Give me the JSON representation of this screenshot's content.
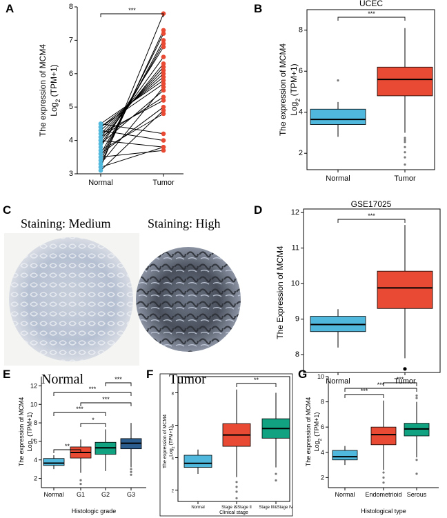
{
  "colors": {
    "normal": "#4fb8dc",
    "tumor": "#e84a33",
    "teal": "#11a381",
    "line": "#000000"
  },
  "chart_data": [
    {
      "id": "A",
      "type": "scatter",
      "subtype": "paired",
      "ylabel": "The expression of MCM4",
      "ylabel2_main": "Log",
      "ylabel2_sub": "2",
      "ylabel2_rest": " (TPM+1)",
      "categories": [
        "Normal",
        "Tumor"
      ],
      "ylim": [
        3,
        8
      ],
      "yticks": [
        "3",
        "4",
        "5",
        "6",
        "7",
        "8"
      ],
      "significance": "***",
      "pairs": [
        [
          3.2,
          7.8
        ],
        [
          3.3,
          7.3
        ],
        [
          3.4,
          7.2
        ],
        [
          3.5,
          7.0
        ],
        [
          3.6,
          6.9
        ],
        [
          3.8,
          6.8
        ],
        [
          3.9,
          6.5
        ],
        [
          4.0,
          6.3
        ],
        [
          4.1,
          6.2
        ],
        [
          4.2,
          6.1
        ],
        [
          4.3,
          6.0
        ],
        [
          4.4,
          5.9
        ],
        [
          4.5,
          5.8
        ],
        [
          4.4,
          5.7
        ],
        [
          3.3,
          5.6
        ],
        [
          3.9,
          5.5
        ],
        [
          4.1,
          5.3
        ],
        [
          4.2,
          5.2
        ],
        [
          3.6,
          5.0
        ],
        [
          3.1,
          4.9
        ],
        [
          3.7,
          4.8
        ],
        [
          4.5,
          4.2
        ],
        [
          4.3,
          4.0
        ],
        [
          4.0,
          3.8
        ],
        [
          3.5,
          3.7
        ],
        [
          3.2,
          3.8
        ]
      ]
    },
    {
      "id": "B",
      "type": "box",
      "title": "UCEC",
      "ylabel": "The expression of MCM4",
      "ylabel2_main": "Log",
      "ylabel2_sub": "2",
      "ylabel2_rest": " (TPM+1)",
      "categories": [
        "Normal",
        "Tumor"
      ],
      "ylim": [
        1.2,
        9
      ],
      "yticks": [
        "2",
        "4",
        "6",
        "8"
      ],
      "significance": "***",
      "boxes": [
        {
          "min": 2.8,
          "q1": 3.4,
          "median": 3.65,
          "q3": 4.15,
          "max": 4.5,
          "outliers": [
            5.55
          ]
        },
        {
          "min": 3.0,
          "q1": 4.8,
          "median": 5.6,
          "q3": 6.2,
          "max": 8.1,
          "outliers": [
            2.75,
            2.65,
            2.55,
            2.3,
            2.05,
            1.8,
            1.45
          ]
        }
      ]
    },
    {
      "id": "D",
      "type": "box",
      "title": "GSE17025",
      "ylabel": "The Expression of MCM4",
      "categories": [
        "Normal",
        "Tumor"
      ],
      "ylim": [
        7.5,
        12.1
      ],
      "yticks": [
        "8",
        "9",
        "10",
        "11",
        "12"
      ],
      "significance": "***",
      "boxes": [
        {
          "min": 8.2,
          "q1": 8.65,
          "median": 8.85,
          "q3": 9.08,
          "max": 9.28,
          "outliers": []
        },
        {
          "min": 7.9,
          "q1": 9.3,
          "median": 9.88,
          "q3": 10.35,
          "max": 11.65,
          "outliers": [
            7.6
          ]
        }
      ]
    },
    {
      "id": "E",
      "type": "box",
      "ylabel": "The expression of MCM4",
      "ylabel2_main": "Log",
      "ylabel2_sub": "2",
      "ylabel2_rest": " (TPM+1)",
      "xlabel": "Histologic grade",
      "categories": [
        "Normal",
        "G1",
        "G2",
        "G3"
      ],
      "ylim": [
        1,
        13
      ],
      "yticks": [
        "2",
        "4",
        "6",
        "8",
        "10",
        "12"
      ],
      "significance": [
        {
          "from": 0,
          "to": 1,
          "label": "**"
        },
        {
          "from": 1,
          "to": 2,
          "label": "*"
        },
        {
          "from": 0,
          "to": 2,
          "label": "***"
        },
        {
          "from": 1,
          "to": 3,
          "label": "***"
        },
        {
          "from": 0,
          "to": 3,
          "label": "***"
        },
        {
          "from": 2,
          "to": 3,
          "label": "***"
        }
      ],
      "boxes": [
        {
          "min": 3.0,
          "q1": 3.4,
          "median": 3.65,
          "q3": 4.15,
          "max": 4.5,
          "outliers": []
        },
        {
          "min": 2.6,
          "q1": 4.2,
          "median": 4.8,
          "q3": 5.4,
          "max": 6.2,
          "outliers": [
            1.8,
            1.4
          ]
        },
        {
          "min": 2.8,
          "q1": 4.6,
          "median": 5.3,
          "q3": 5.9,
          "max": 7.3,
          "outliers": []
        },
        {
          "min": 3.2,
          "q1": 5.2,
          "median": 5.8,
          "q3": 6.3,
          "max": 8.0,
          "outliers": [
            3.0,
            2.7,
            2.4
          ]
        }
      ]
    },
    {
      "id": "F",
      "type": "box",
      "ylabel": "The expression of MCM4",
      "ylabel2_main": "Log",
      "ylabel2_sub": "2",
      "ylabel2_rest": " (TPM+1)",
      "xlabel": "Clinical stage",
      "categories": [
        "Normal",
        "Stage I&Stage II",
        "Stage III&Stage IV"
      ],
      "ylim": [
        1.3,
        9
      ],
      "yticks": [
        "2",
        "4",
        "6",
        "8"
      ],
      "significance": "**",
      "boxes": [
        {
          "min": 3.0,
          "q1": 3.4,
          "median": 3.65,
          "q3": 4.15,
          "max": 4.5,
          "outliers": []
        },
        {
          "min": 2.8,
          "q1": 4.7,
          "median": 5.4,
          "q3": 6.1,
          "max": 8.2,
          "outliers": [
            2.5,
            2.2,
            1.9,
            1.5
          ]
        },
        {
          "min": 3.4,
          "q1": 5.2,
          "median": 5.8,
          "q3": 6.4,
          "max": 8.0,
          "outliers": [
            3.0,
            2.6
          ]
        }
      ]
    },
    {
      "id": "G",
      "type": "box",
      "ylabel": "The expression of MCM4",
      "ylabel2_main": "Log",
      "ylabel2_sub": "2",
      "ylabel2_rest": " (TPM+1)",
      "xlabel": "Histological type",
      "categories": [
        "Normal",
        "Endometrioid",
        "Serous"
      ],
      "ylim": [
        1.2,
        10
      ],
      "yticks": [
        "2",
        "4",
        "6",
        "8",
        "10"
      ],
      "significance": [
        {
          "from": 0,
          "to": 1,
          "label": "***"
        },
        {
          "from": 0,
          "to": 2,
          "label": "***"
        },
        {
          "from": 1,
          "to": 2,
          "label": "***"
        }
      ],
      "boxes": [
        {
          "min": 3.0,
          "q1": 3.4,
          "median": 3.65,
          "q3": 4.15,
          "max": 4.5,
          "outliers": []
        },
        {
          "min": 2.6,
          "q1": 4.6,
          "median": 5.4,
          "q3": 6.0,
          "max": 8.1,
          "outliers": [
            2.4,
            2.0,
            1.6
          ]
        },
        {
          "min": 3.6,
          "q1": 5.3,
          "median": 5.85,
          "q3": 6.3,
          "max": 8.0,
          "outliers": [
            8.5,
            8.3,
            3.4,
            2.3
          ]
        }
      ]
    }
  ],
  "panel_c": {
    "letter": "C",
    "left_staining": "Staining: Medium",
    "right_staining": "Staining: High",
    "left_caption": "Normal",
    "right_caption": "Tumor"
  },
  "letters": {
    "A": "A",
    "B": "B",
    "D": "D",
    "E": "E",
    "F": "F",
    "G": "G"
  }
}
